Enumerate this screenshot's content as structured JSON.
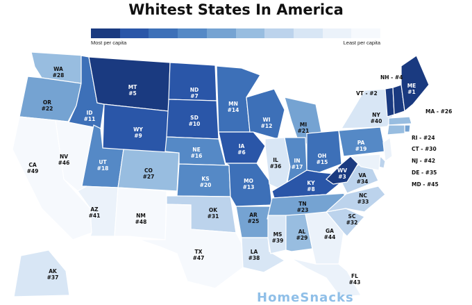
{
  "title": "Whitest States In America",
  "legend": {
    "most": "Most per capita",
    "least": "Least per capita",
    "colors": [
      "#1a3a80",
      "#2a56a8",
      "#3d70b8",
      "#5589c6",
      "#75a3d2",
      "#98bde0",
      "#bcd3ec",
      "#d8e6f5",
      "#ebf2fa",
      "#f6f9fd"
    ]
  },
  "watermark": "HomeSnacks",
  "states": [
    {
      "id": "WA",
      "rank": 28
    },
    {
      "id": "OR",
      "rank": 22
    },
    {
      "id": "CA",
      "rank": 49
    },
    {
      "id": "NV",
      "rank": 46
    },
    {
      "id": "ID",
      "rank": 11
    },
    {
      "id": "MT",
      "rank": 5
    },
    {
      "id": "WY",
      "rank": 9
    },
    {
      "id": "UT",
      "rank": 18
    },
    {
      "id": "AZ",
      "rank": 41
    },
    {
      "id": "CO",
      "rank": 27
    },
    {
      "id": "NM",
      "rank": 48
    },
    {
      "id": "ND",
      "rank": 7
    },
    {
      "id": "SD",
      "rank": 10
    },
    {
      "id": "NE",
      "rank": 16
    },
    {
      "id": "KS",
      "rank": 20
    },
    {
      "id": "OK",
      "rank": 31
    },
    {
      "id": "TX",
      "rank": 47
    },
    {
      "id": "MN",
      "rank": 14
    },
    {
      "id": "IA",
      "rank": 6
    },
    {
      "id": "MO",
      "rank": 13
    },
    {
      "id": "AR",
      "rank": 25
    },
    {
      "id": "LA",
      "rank": 38
    },
    {
      "id": "WI",
      "rank": 12
    },
    {
      "id": "IL",
      "rank": 36
    },
    {
      "id": "MI",
      "rank": 21
    },
    {
      "id": "IN",
      "rank": 17
    },
    {
      "id": "OH",
      "rank": 15
    },
    {
      "id": "KY",
      "rank": 8
    },
    {
      "id": "TN",
      "rank": 23
    },
    {
      "id": "MS",
      "rank": 39
    },
    {
      "id": "AL",
      "rank": 29
    },
    {
      "id": "GA",
      "rank": 44
    },
    {
      "id": "FL",
      "rank": 43
    },
    {
      "id": "SC",
      "rank": 32
    },
    {
      "id": "NC",
      "rank": 33
    },
    {
      "id": "VA",
      "rank": 34
    },
    {
      "id": "WV",
      "rank": 3
    },
    {
      "id": "PA",
      "rank": 19
    },
    {
      "id": "NY",
      "rank": 40
    },
    {
      "id": "VT",
      "rank": 2
    },
    {
      "id": "NH",
      "rank": 4
    },
    {
      "id": "ME",
      "rank": 1
    },
    {
      "id": "MA",
      "rank": 26
    },
    {
      "id": "RI",
      "rank": 24
    },
    {
      "id": "CT",
      "rank": 30
    },
    {
      "id": "NJ",
      "rank": 42
    },
    {
      "id": "DE",
      "rank": 35
    },
    {
      "id": "MD",
      "rank": 45
    },
    {
      "id": "AK",
      "rank": 37
    }
  ]
}
